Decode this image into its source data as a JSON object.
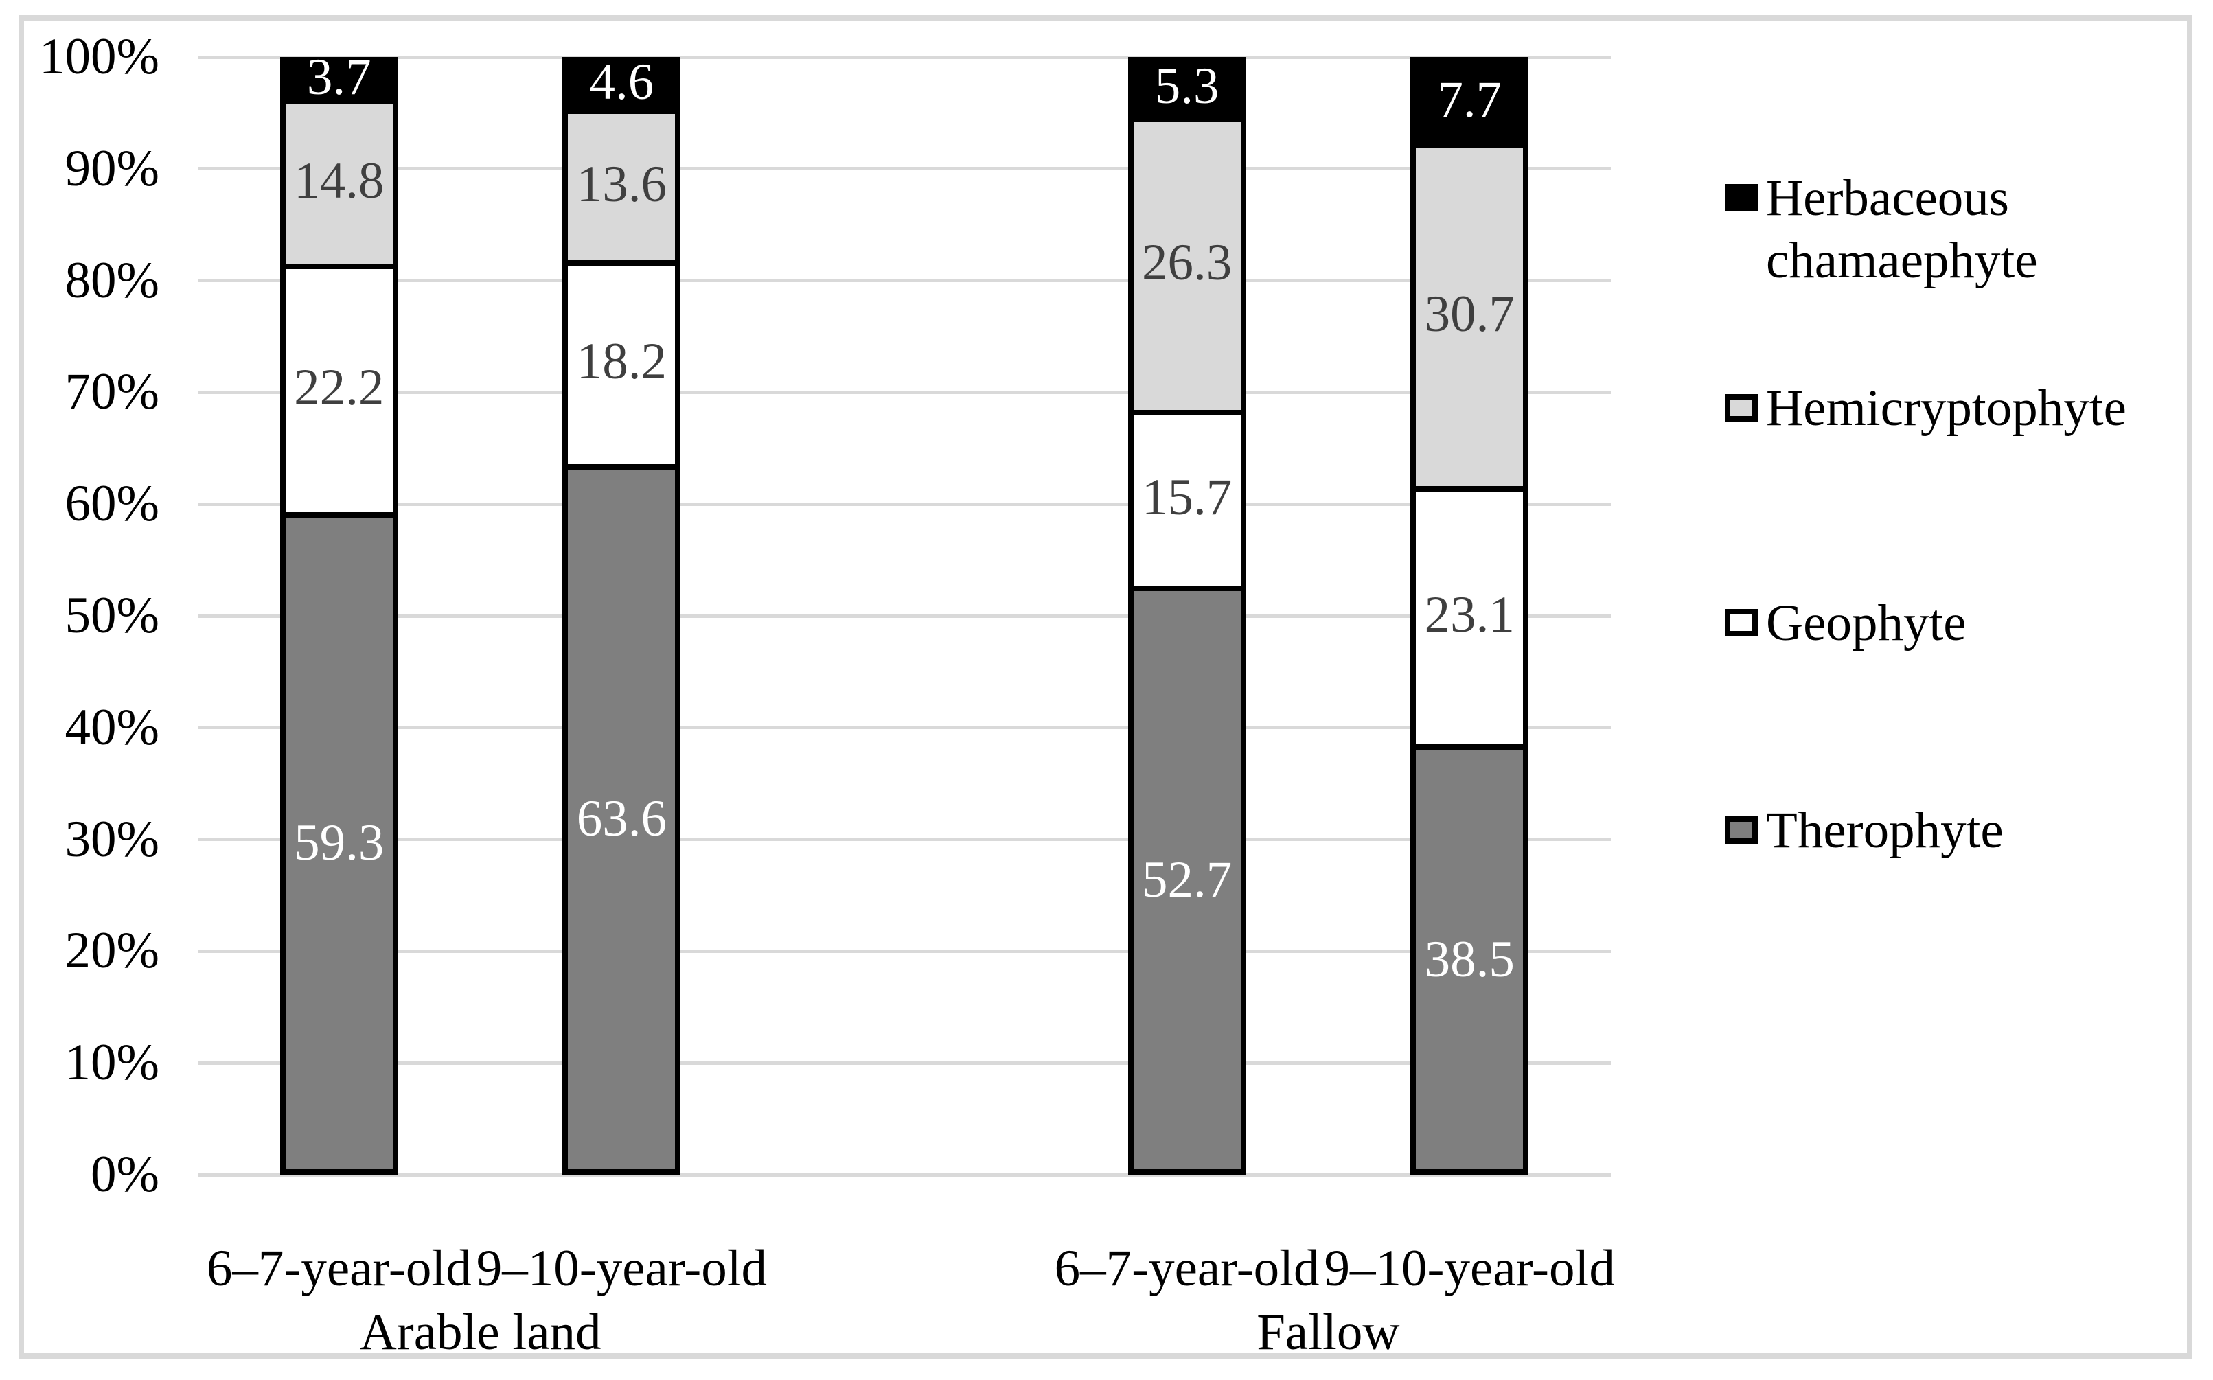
{
  "figure": {
    "background": "#FFFFFF",
    "frame_border_color": "#D9D9D9",
    "gridline_color": "#D9D9D9",
    "bar_border_color": "#000000"
  },
  "chart_data": {
    "type": "bar",
    "stacked": true,
    "percent_stacked": true,
    "title": "",
    "xlabel": "",
    "ylabel": "",
    "ylim": [
      0,
      100
    ],
    "grid": true,
    "yticks": [
      "0%",
      "10%",
      "20%",
      "30%",
      "40%",
      "50%",
      "60%",
      "70%",
      "80%",
      "90%",
      "100%"
    ],
    "groups": [
      {
        "label": "Arable land",
        "categories": [
          "6–7-year-old",
          "9–10-year-old"
        ]
      },
      {
        "label": "Fallow",
        "categories": [
          "6–7-year-old",
          "9–10-year-old"
        ]
      }
    ],
    "series": [
      {
        "name": "Therophyte",
        "color": "#7F7F7F",
        "label_color": "#FFFFFF",
        "values": [
          59.3,
          63.6,
          52.7,
          38.5
        ]
      },
      {
        "name": "Geophyte",
        "color": "#FFFFFF",
        "label_color": "#3F3F3F",
        "values": [
          22.2,
          18.2,
          15.7,
          23.1
        ]
      },
      {
        "name": "Hemicryptophyte",
        "color": "#D9D9D9",
        "label_color": "#3F3F3F",
        "values": [
          14.8,
          13.6,
          26.3,
          30.7
        ]
      },
      {
        "name": "Herbaceous chamaephyte",
        "color": "#000000",
        "label_color": "#FFFFFF",
        "values": [
          3.7,
          4.6,
          5.3,
          7.7
        ]
      }
    ],
    "legend": {
      "position": "right",
      "entries": [
        "Herbaceous chamaephyte",
        "Hemicryptophyte",
        "Geophyte",
        "Therophyte"
      ]
    }
  }
}
